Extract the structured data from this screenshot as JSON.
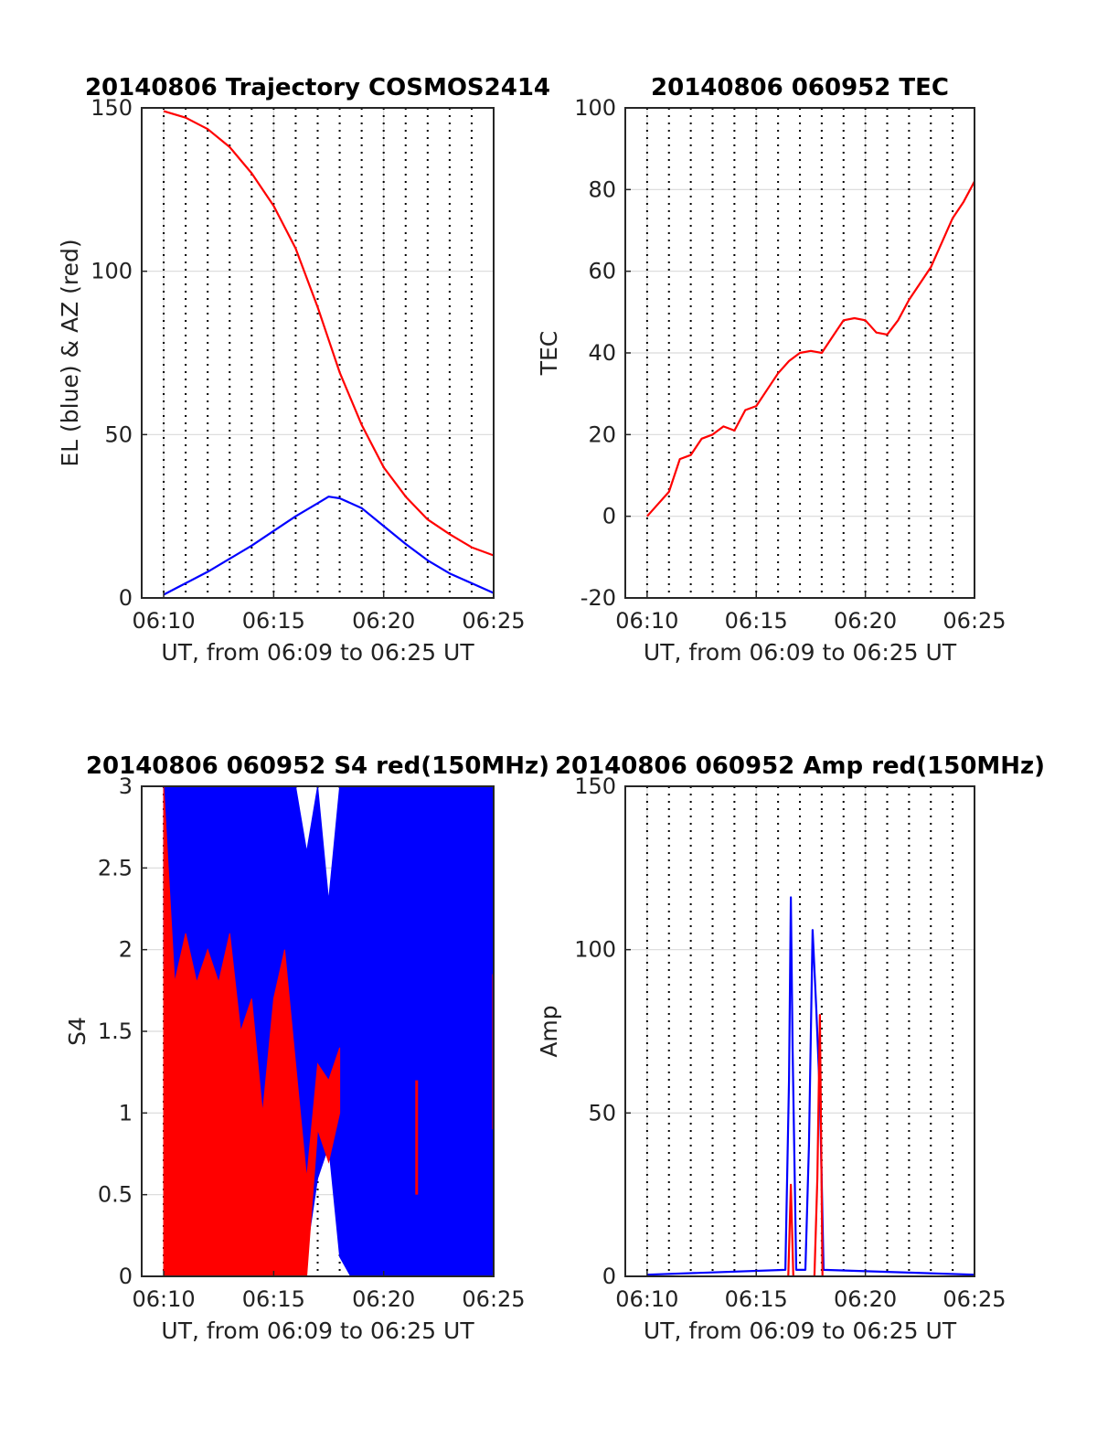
{
  "figure": {
    "colors": {
      "blue": "#0000ff",
      "red": "#ff0000",
      "grid": "#d9d9d9",
      "axis": "#262626",
      "vline": "#000000"
    },
    "vertical_markers": [
      "06:10",
      "06:11",
      "06:12",
      "06:13",
      "06:14",
      "06:15",
      "06:16",
      "06:17",
      "06:18",
      "06:19",
      "06:20",
      "06:21",
      "06:22",
      "06:23",
      "06:24",
      "06:25"
    ]
  },
  "chart_data": [
    {
      "id": "trajectory",
      "type": "line",
      "title": "20140806 Trajectory COSMOS2414",
      "xlabel": "UT, from 06:09 to 06:25 UT",
      "ylabel": "EL (blue) & AZ (red)",
      "xlim": [
        "06:09",
        "06:25"
      ],
      "ylim": [
        0,
        150
      ],
      "xticks": [
        "06:10",
        "06:15",
        "06:20",
        "06:25"
      ],
      "yticks": [
        0,
        50,
        100,
        150
      ],
      "grid": true,
      "series": [
        {
          "color": "#ff0000",
          "x": [
            "06:10",
            "06:11",
            "06:12",
            "06:13",
            "06:14",
            "06:15",
            "06:16",
            "06:17",
            "06:18",
            "06:19",
            "06:20",
            "06:21",
            "06:22",
            "06:23",
            "06:24",
            "06:25"
          ],
          "y": [
            149,
            147,
            143.5,
            138,
            130,
            120,
            107,
            89,
            69,
            53,
            40,
            31,
            24,
            19.5,
            15.5,
            13
          ]
        },
        {
          "color": "#0000ff",
          "x": [
            "06:10",
            "06:11",
            "06:12",
            "06:13",
            "06:14",
            "06:15",
            "06:16",
            "06:17",
            "06:17:30",
            "06:18",
            "06:19",
            "06:20",
            "06:21",
            "06:22",
            "06:23",
            "06:24",
            "06:25"
          ],
          "y": [
            1,
            4.5,
            8,
            12,
            16,
            20.5,
            25,
            29,
            31,
            30.5,
            27.5,
            22,
            16.5,
            11.5,
            7.5,
            4.5,
            1.5
          ]
        }
      ]
    },
    {
      "id": "tec",
      "type": "line",
      "title": "20140806 060952 TEC",
      "xlabel": "UT, from 06:09 to 06:25 UT",
      "ylabel": "TEC",
      "xlim": [
        "06:09",
        "06:25"
      ],
      "ylim": [
        -20,
        100
      ],
      "xticks": [
        "06:10",
        "06:15",
        "06:20",
        "06:25"
      ],
      "yticks": [
        -20,
        0,
        20,
        40,
        60,
        80,
        100
      ],
      "grid": true,
      "series": [
        {
          "color": "#ff0000",
          "x": [
            "06:10",
            "06:10:30",
            "06:11",
            "06:11:30",
            "06:12",
            "06:12:30",
            "06:13",
            "06:13:30",
            "06:14",
            "06:14:30",
            "06:15",
            "06:15:30",
            "06:16",
            "06:16:30",
            "06:17",
            "06:17:30",
            "06:18",
            "06:18:30",
            "06:19",
            "06:19:30",
            "06:20",
            "06:20:30",
            "06:21",
            "06:21:30",
            "06:22",
            "06:22:30",
            "06:23",
            "06:23:30",
            "06:24",
            "06:24:30",
            "06:25"
          ],
          "y": [
            0,
            3,
            6,
            14,
            15,
            19,
            20,
            22,
            21,
            26,
            27,
            31,
            35,
            38,
            40,
            40.5,
            40,
            44,
            48,
            48.5,
            48,
            45,
            44.5,
            48,
            53,
            57,
            61,
            67,
            73,
            77,
            82
          ]
        }
      ]
    },
    {
      "id": "s4",
      "type": "line",
      "title": "20140806 060952 S4 red(150MHz)",
      "xlabel": "UT, from 06:09 to 06:25 UT",
      "ylabel": "S4",
      "xlim": [
        "06:09",
        "06:25"
      ],
      "ylim": [
        0,
        3
      ],
      "xticks": [
        "06:10",
        "06:15",
        "06:20",
        "06:25"
      ],
      "yticks": [
        0,
        0.5,
        1,
        1.5,
        2,
        2.5,
        3
      ],
      "grid": true,
      "series": [
        {
          "color": "#0000ff",
          "x": [
            "06:10",
            "06:11",
            "06:12",
            "06:13",
            "06:14",
            "06:15",
            "06:16",
            "06:16:30",
            "06:17",
            "06:17:30",
            "06:18",
            "06:18:30",
            "06:19",
            "06:20",
            "06:21",
            "06:22",
            "06:23",
            "06:24",
            "06:25"
          ],
          "y_min": [
            1.9,
            1.7,
            1.7,
            1.5,
            1.4,
            0.6,
            0.3,
            0.15,
            0.6,
            0.8,
            0.12,
            0.0,
            0.0,
            0.0,
            0.0,
            0.0,
            0.0,
            0.0,
            0.0
          ],
          "y_max": [
            3,
            3,
            3,
            3,
            3,
            3,
            3,
            2.6,
            3,
            2.3,
            3,
            3,
            3,
            3,
            3,
            3,
            3,
            3,
            3
          ]
        },
        {
          "color": "#ff0000",
          "x": [
            "06:10",
            "06:10:30",
            "06:11",
            "06:11:30",
            "06:12",
            "06:12:30",
            "06:13",
            "06:13:30",
            "06:14",
            "06:14:30",
            "06:15",
            "06:15:30",
            "06:16",
            "06:16:30",
            "06:17",
            "06:17:30",
            "06:18",
            "06:18:30",
            "06:19",
            "06:20",
            "06:21",
            "06:21:30",
            "06:22",
            "06:23",
            "06:24",
            "06:25"
          ],
          "y_min": [
            0,
            0,
            0,
            0,
            0,
            0,
            0,
            0,
            0,
            0,
            0,
            0,
            0,
            0,
            0.9,
            0.7,
            1.0,
            null,
            null,
            null,
            null,
            0.5,
            null,
            null,
            null,
            0.9
          ],
          "y_max": [
            3,
            1.8,
            2.1,
            1.8,
            2.0,
            1.8,
            2.1,
            1.5,
            1.7,
            1.0,
            1.7,
            2.0,
            1.3,
            0.6,
            1.3,
            1.2,
            1.4,
            null,
            null,
            null,
            null,
            1.2,
            null,
            null,
            null,
            1.85
          ]
        }
      ]
    },
    {
      "id": "amp",
      "type": "line",
      "title": "20140806 060952 Amp red(150MHz)",
      "xlabel": "UT, from 06:09 to 06:25 UT",
      "ylabel": "Amp",
      "xlim": [
        "06:09",
        "06:25"
      ],
      "ylim": [
        0,
        150
      ],
      "xticks": [
        "06:10",
        "06:15",
        "06:20",
        "06:25"
      ],
      "yticks": [
        0,
        50,
        100,
        150
      ],
      "grid": true,
      "series": [
        {
          "color": "#0000ff",
          "x": [
            "06:10",
            "06:16:20",
            "06:16:30",
            "06:16:35",
            "06:16:40",
            "06:16:50",
            "06:17:15",
            "06:17:25",
            "06:17:35",
            "06:17:45",
            "06:17:55",
            "06:18:05",
            "06:25"
          ],
          "y": [
            0.5,
            2,
            60,
            116,
            70,
            2,
            2,
            40,
            106,
            82,
            55,
            2,
            0.5
          ]
        },
        {
          "color": "#ff0000",
          "x": [
            "06:16:28",
            "06:16:35",
            "06:16:42",
            "06:17:40",
            "06:17:48",
            "06:17:55",
            "06:18:02"
          ],
          "y": [
            0,
            28,
            0,
            0,
            30,
            80,
            0
          ]
        }
      ]
    }
  ]
}
